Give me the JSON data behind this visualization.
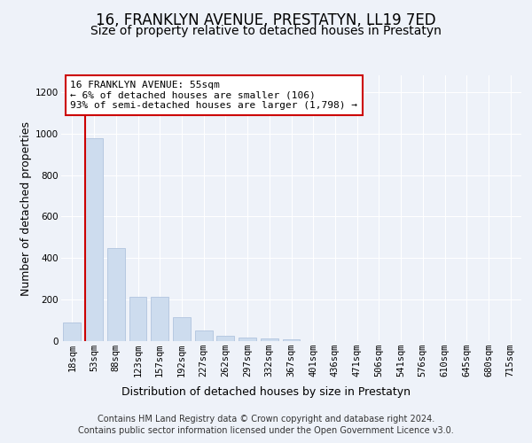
{
  "title": "16, FRANKLYN AVENUE, PRESTATYN, LL19 7ED",
  "subtitle": "Size of property relative to detached houses in Prestatyn",
  "xlabel": "Distribution of detached houses by size in Prestatyn",
  "ylabel": "Number of detached properties",
  "categories": [
    "18sqm",
    "53sqm",
    "88sqm",
    "123sqm",
    "157sqm",
    "192sqm",
    "227sqm",
    "262sqm",
    "297sqm",
    "332sqm",
    "367sqm",
    "401sqm",
    "436sqm",
    "471sqm",
    "506sqm",
    "541sqm",
    "576sqm",
    "610sqm",
    "645sqm",
    "680sqm",
    "715sqm"
  ],
  "values": [
    90,
    975,
    450,
    215,
    215,
    115,
    52,
    25,
    18,
    13,
    10,
    0,
    0,
    0,
    0,
    0,
    0,
    0,
    0,
    0,
    0
  ],
  "bar_color": "#cddcee",
  "bar_edge_color": "#b0c4de",
  "vline_color": "#cc0000",
  "vline_position": 0.575,
  "annotation_text": "16 FRANKLYN AVENUE: 55sqm\n← 6% of detached houses are smaller (106)\n93% of semi-detached houses are larger (1,798) →",
  "annotation_box_facecolor": "#ffffff",
  "annotation_box_edgecolor": "#cc0000",
  "ylim": [
    0,
    1280
  ],
  "yticks": [
    0,
    200,
    400,
    600,
    800,
    1000,
    1200
  ],
  "footer_line1": "Contains HM Land Registry data © Crown copyright and database right 2024.",
  "footer_line2": "Contains public sector information licensed under the Open Government Licence v3.0.",
  "title_fontsize": 12,
  "subtitle_fontsize": 10,
  "ylabel_fontsize": 9,
  "xlabel_fontsize": 9,
  "tick_fontsize": 7.5,
  "annotation_fontsize": 8,
  "footer_fontsize": 7,
  "background_color": "#eef2f9",
  "plot_bg_color": "#eef2f9"
}
